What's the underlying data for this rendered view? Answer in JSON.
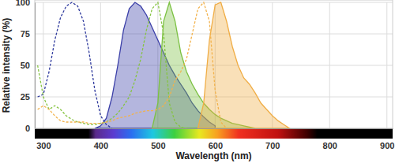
{
  "chart_data": {
    "type": "line",
    "x_label": "Wavelength (nm)",
    "y_label": "Relative intensity (%)",
    "x": [
      290,
      300,
      310,
      320,
      330,
      340,
      350,
      360,
      370,
      380,
      390,
      400,
      410,
      420,
      430,
      440,
      450,
      460,
      470,
      480,
      490,
      500,
      510,
      520,
      530,
      540,
      550,
      560,
      570,
      580,
      590,
      600,
      610,
      620,
      630,
      640,
      650,
      660,
      670,
      680,
      690,
      700,
      710,
      720,
      730
    ],
    "xlim": [
      285,
      910
    ],
    "xticks": [
      300,
      400,
      500,
      600,
      700,
      800,
      900
    ],
    "ylim": [
      0,
      100
    ],
    "yticks": [
      0,
      25,
      50,
      75,
      100
    ],
    "grid": true,
    "series": [
      {
        "type": "line",
        "line_style": "dashed",
        "color": "#2f3a9e",
        "values": [
          25,
          27,
          45,
          70,
          88,
          97,
          100,
          97,
          85,
          60,
          30,
          10,
          3,
          0,
          null,
          null,
          null,
          null,
          null,
          null,
          null,
          null,
          null,
          null,
          null,
          null,
          null,
          null,
          null,
          null,
          null,
          null,
          null,
          null,
          null,
          null,
          null,
          null,
          null,
          null,
          null,
          null,
          null,
          null,
          null
        ]
      },
      {
        "type": "area",
        "line_style": "solid",
        "color": "#3b3fa8",
        "values": [
          null,
          null,
          null,
          null,
          null,
          null,
          null,
          null,
          null,
          null,
          0,
          2,
          8,
          25,
          50,
          78,
          95,
          100,
          97,
          90,
          80,
          70,
          60,
          50,
          42,
          35,
          28,
          20,
          14,
          9,
          5,
          2,
          null,
          null,
          null,
          null,
          null,
          null,
          null,
          null,
          null,
          null,
          null,
          null,
          null
        ]
      },
      {
        "type": "line",
        "line_style": "dashed",
        "color": "#86c442",
        "values": [
          50,
          25,
          15,
          18,
          15,
          10,
          7,
          5,
          4,
          3,
          3,
          4,
          5,
          8,
          12,
          18,
          25,
          38,
          55,
          78,
          95,
          100,
          75,
          20,
          5,
          1,
          0,
          null,
          null,
          null,
          null,
          null,
          null,
          null,
          null,
          null,
          null,
          null,
          null,
          null,
          null,
          null,
          null,
          null,
          null
        ]
      },
      {
        "type": "area",
        "line_style": "solid",
        "color": "#7cc143",
        "values": [
          null,
          null,
          null,
          null,
          null,
          null,
          null,
          null,
          null,
          null,
          null,
          null,
          null,
          null,
          null,
          null,
          null,
          null,
          null,
          null,
          0,
          20,
          85,
          100,
          85,
          60,
          45,
          35,
          27,
          20,
          15,
          11,
          8,
          6,
          4,
          3,
          2,
          1,
          0,
          null,
          null,
          null,
          null,
          null,
          null
        ]
      },
      {
        "type": "line",
        "line_style": "dashed",
        "color": "#f2b24c",
        "values": [
          15,
          18,
          15,
          10,
          6,
          5,
          5,
          5,
          5,
          4,
          4,
          4,
          5,
          6,
          8,
          9,
          10,
          12,
          13,
          14,
          14,
          15,
          18,
          25,
          38,
          45,
          55,
          75,
          95,
          100,
          85,
          30,
          5,
          0,
          null,
          null,
          null,
          null,
          null,
          null,
          null,
          null,
          null,
          null,
          null
        ]
      },
      {
        "type": "area",
        "line_style": "solid",
        "color": "#f0ad45",
        "values": [
          null,
          null,
          null,
          null,
          null,
          null,
          null,
          null,
          null,
          null,
          null,
          null,
          null,
          null,
          null,
          null,
          null,
          null,
          null,
          null,
          null,
          null,
          null,
          null,
          null,
          null,
          null,
          null,
          0,
          20,
          70,
          98,
          100,
          85,
          65,
          50,
          40,
          35,
          28,
          20,
          15,
          10,
          6,
          3,
          0
        ]
      }
    ]
  }
}
